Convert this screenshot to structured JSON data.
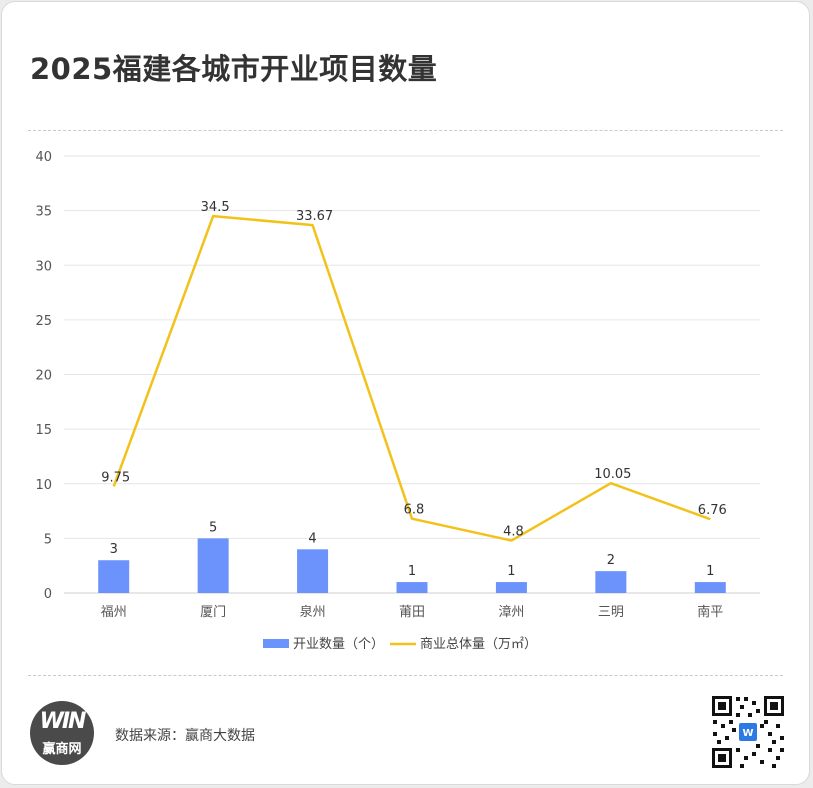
{
  "title": "2025福建各城市开业项目数量",
  "source_text": "数据来源：赢商大数据",
  "logo": {
    "mark": "WIN",
    "text": "赢商网"
  },
  "qr_icon": "qr-code-icon",
  "colors": {
    "bar": "#6b93fb",
    "line": "#f2c21b",
    "grid": "#e6e6e6"
  },
  "chart_data": {
    "type": "bar+line",
    "categories": [
      "福州",
      "厦门",
      "泉州",
      "莆田",
      "漳州",
      "三明",
      "南平"
    ],
    "series": [
      {
        "name": "开业数量（个）",
        "type": "bar",
        "values": [
          3,
          5,
          4,
          1,
          1,
          2,
          1
        ],
        "labels": [
          "3",
          "5",
          "4",
          "1",
          "1",
          "2",
          "1"
        ]
      },
      {
        "name": "商业总体量（万㎡）",
        "type": "line",
        "values": [
          9.75,
          34.5,
          33.67,
          6.8,
          4.8,
          10.05,
          6.76
        ],
        "labels": [
          "9.75",
          "34.5",
          "33.67",
          "6.8",
          "4.8",
          "10.05",
          "6.76"
        ]
      }
    ],
    "ylim": [
      0,
      40
    ],
    "yticks": [
      "0",
      "5",
      "10",
      "15",
      "20",
      "25",
      "30",
      "35",
      "40"
    ],
    "grid": true,
    "legend_position": "bottom"
  }
}
